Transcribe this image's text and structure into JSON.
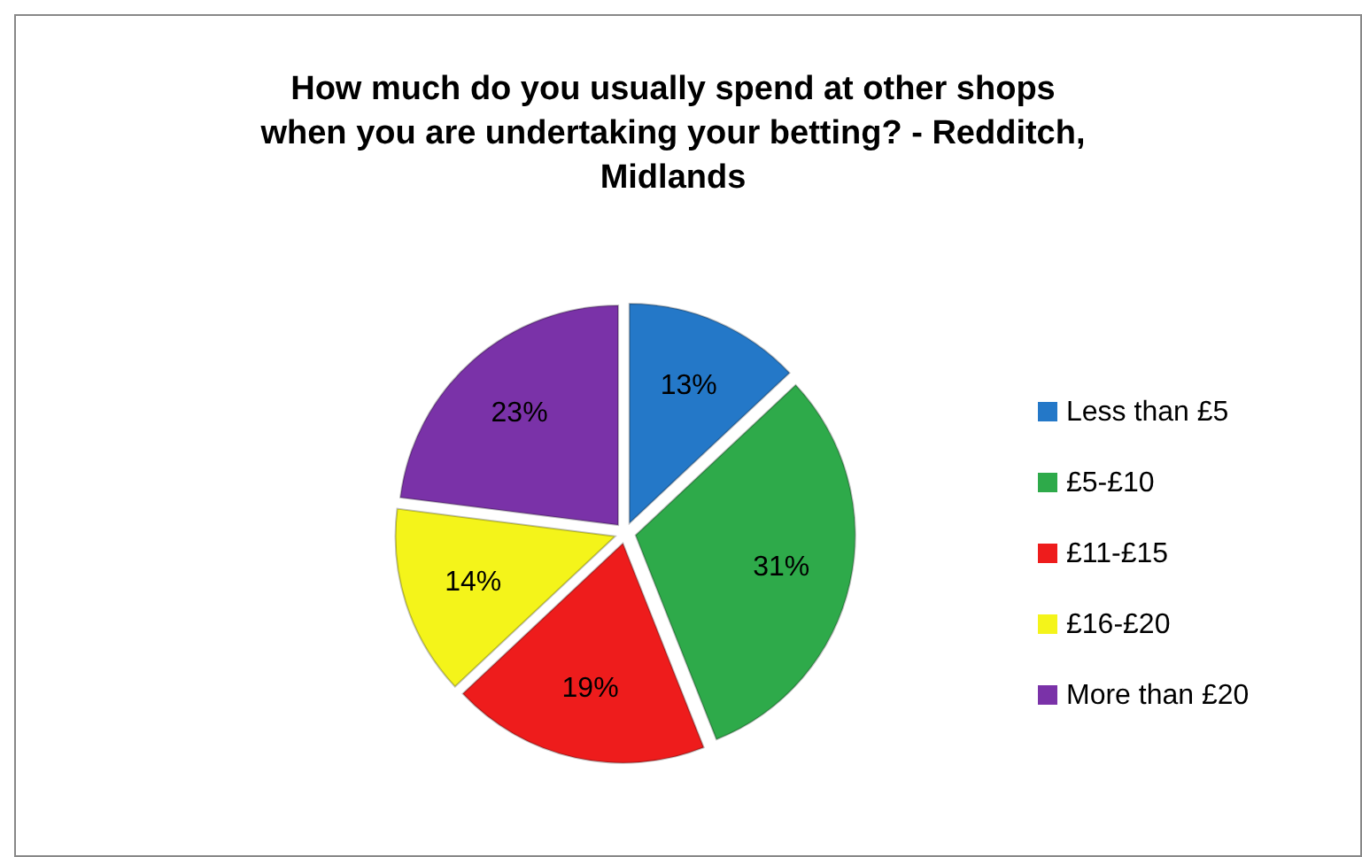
{
  "chart_data": {
    "type": "pie",
    "title": "How much do you usually spend at other shops when you are undertaking your betting? - Redditch, Midlands",
    "categories": [
      "Less than £5",
      "£5-£10",
      "£11-£15",
      "£16-£20",
      "More than £20"
    ],
    "values": [
      13,
      31,
      19,
      14,
      23
    ],
    "colors": [
      "#2478c8",
      "#2eaa4a",
      "#ee1c1c",
      "#f4f41a",
      "#7a32a8"
    ],
    "value_labels": [
      "13%",
      "31%",
      "19%",
      "14%",
      "23%"
    ],
    "legend": "right"
  }
}
